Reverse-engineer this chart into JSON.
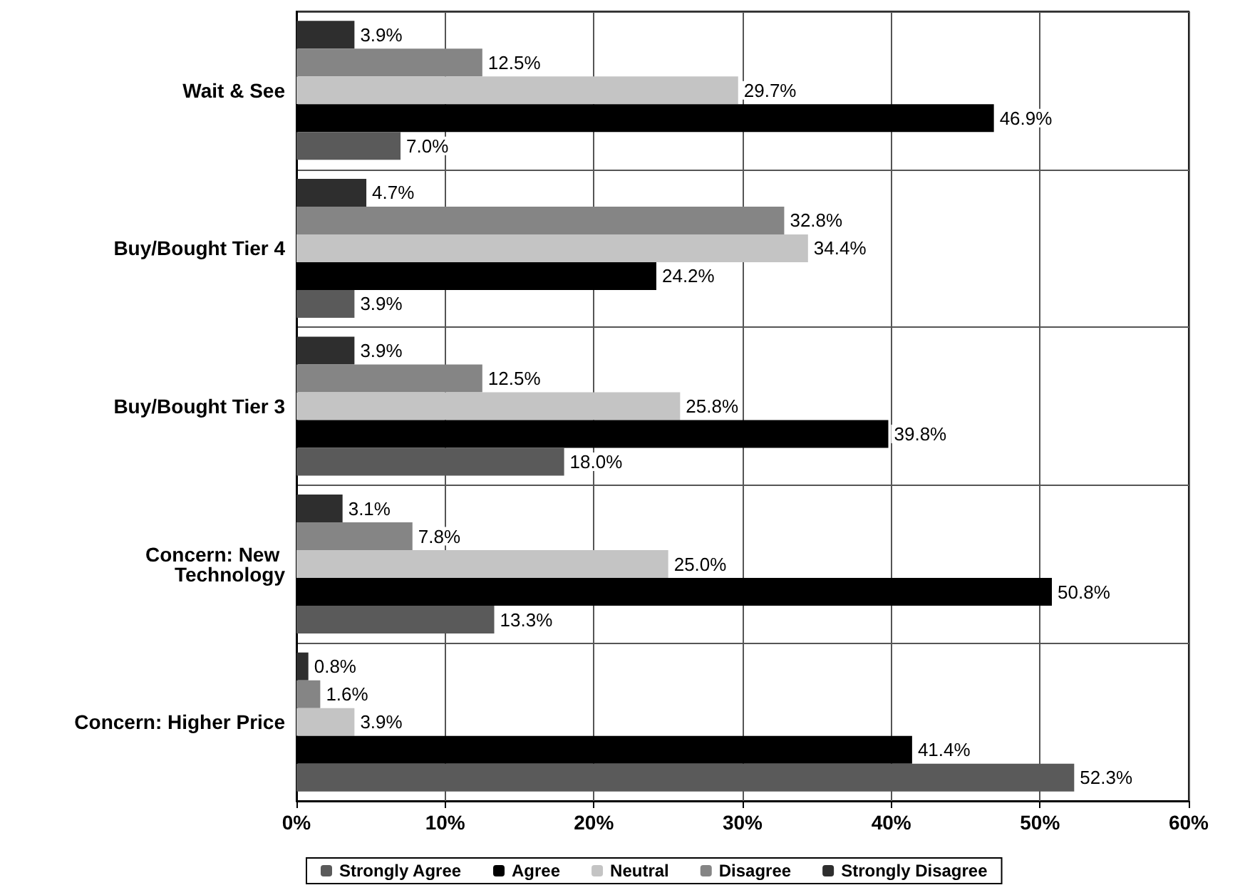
{
  "chart_data": {
    "type": "bar",
    "orientation": "horizontal",
    "categories": [
      "Wait & See",
      "Buy/Bought Tier 4",
      "Buy/Bought Tier 3",
      "Concern: New Technology",
      "Concern: Higher Price"
    ],
    "series": [
      {
        "name": "Strongly Agree",
        "color": "#5a5a5a",
        "values": [
          7.0,
          3.9,
          18.0,
          13.3,
          52.3
        ],
        "value_labels": [
          "7.0%",
          "3.9%",
          "18.0%",
          "13.3%",
          "52.3%"
        ]
      },
      {
        "name": "Agree",
        "color": "#000000",
        "values": [
          46.9,
          24.2,
          39.8,
          50.8,
          41.4
        ],
        "value_labels": [
          "46.9%",
          "24.2%",
          "39.8%",
          "50.8%",
          "41.4%"
        ]
      },
      {
        "name": "Neutral",
        "color": "#c4c4c4",
        "values": [
          29.7,
          34.4,
          25.8,
          25.0,
          3.9
        ],
        "value_labels": [
          "29.7%",
          "34.4%",
          "25.8%",
          "25.0%",
          "3.9%"
        ]
      },
      {
        "name": "Disagree",
        "color": "#858585",
        "values": [
          12.5,
          32.8,
          12.5,
          7.8,
          1.6
        ],
        "value_labels": [
          "12.5%",
          "32.8%",
          "12.5%",
          "7.8%",
          "1.6%"
        ]
      },
      {
        "name": "Strongly Disagree",
        "color": "#2e2e2e",
        "values": [
          3.9,
          4.7,
          3.9,
          3.1,
          0.8
        ],
        "value_labels": [
          "3.9%",
          "4.7%",
          "3.9%",
          "3.1%",
          "0.8%"
        ]
      }
    ],
    "xlim": [
      0,
      60
    ],
    "xticks": [
      {
        "value": 0,
        "label": "0%"
      },
      {
        "value": 10,
        "label": "10%"
      },
      {
        "value": 20,
        "label": "20%"
      },
      {
        "value": 30,
        "label": "30%"
      },
      {
        "value": 40,
        "label": "40%"
      },
      {
        "value": 50,
        "label": "50%"
      },
      {
        "value": 60,
        "label": "60%"
      }
    ],
    "grid": true,
    "legend": "bottom"
  }
}
